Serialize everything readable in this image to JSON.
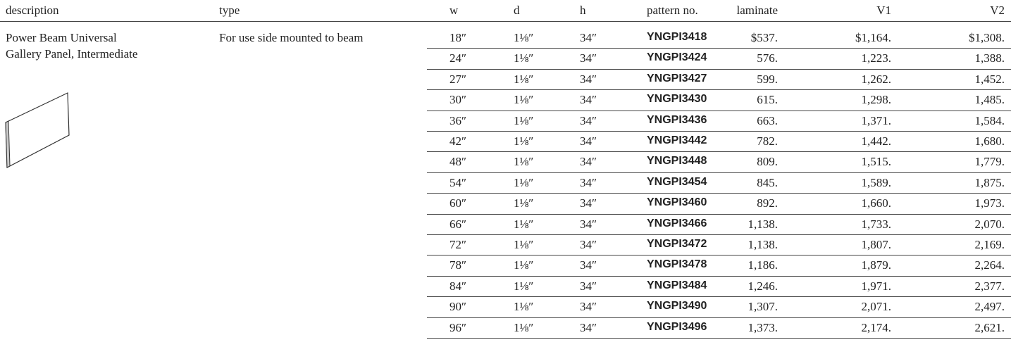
{
  "header": [
    "description",
    "type",
    "w",
    "d",
    "h",
    "pattern no.",
    "laminate",
    "V1",
    "V2"
  ],
  "description": [
    "Power Beam Universal",
    "Gallery Panel, Intermediate"
  ],
  "type": "For use side mounted to beam",
  "rows": [
    [
      "18″",
      "1⅛″",
      "34″",
      "YNGPI3418",
      "$537.",
      "$1,164.",
      "$1,308."
    ],
    [
      "24″",
      "1⅛″",
      "34″",
      "YNGPI3424",
      "576.",
      "1,223.",
      "1,388."
    ],
    [
      "27″",
      "1⅛″",
      "34″",
      "YNGPI3427",
      "599.",
      "1,262.",
      "1,452."
    ],
    [
      "30″",
      "1⅛″",
      "34″",
      "YNGPI3430",
      "615.",
      "1,298.",
      "1,485."
    ],
    [
      "36″",
      "1⅛″",
      "34″",
      "YNGPI3436",
      "663.",
      "1,371.",
      "1,584."
    ],
    [
      "42″",
      "1⅛″",
      "34″",
      "YNGPI3442",
      "782.",
      "1,442.",
      "1,680."
    ],
    [
      "48″",
      "1⅛″",
      "34″",
      "YNGPI3448",
      "809.",
      "1,515.",
      "1,779."
    ],
    [
      "54″",
      "1⅛″",
      "34″",
      "YNGPI3454",
      "845.",
      "1,589.",
      "1,875."
    ],
    [
      "60″",
      "1⅛″",
      "34″",
      "YNGPI3460",
      "892.",
      "1,660.",
      "1,973."
    ],
    [
      "66″",
      "1⅛″",
      "34″",
      "YNGPI3466",
      "1,138.",
      "1,733.",
      "2,070."
    ],
    [
      "72″",
      "1⅛″",
      "34″",
      "YNGPI3472",
      "1,138.",
      "1,807.",
      "2,169."
    ],
    [
      "78″",
      "1⅛″",
      "34″",
      "YNGPI3478",
      "1,186.",
      "1,879.",
      "2,264."
    ],
    [
      "84″",
      "1⅛″",
      "34″",
      "YNGPI3484",
      "1,246.",
      "1,971.",
      "2,377."
    ],
    [
      "90″",
      "1⅛″",
      "34″",
      "YNGPI3490",
      "1,307.",
      "2,071.",
      "2,497."
    ],
    [
      "96″",
      "1⅛″",
      "34″",
      "YNGPI3496",
      "1,373.",
      "2,174.",
      "2,621."
    ]
  ]
}
